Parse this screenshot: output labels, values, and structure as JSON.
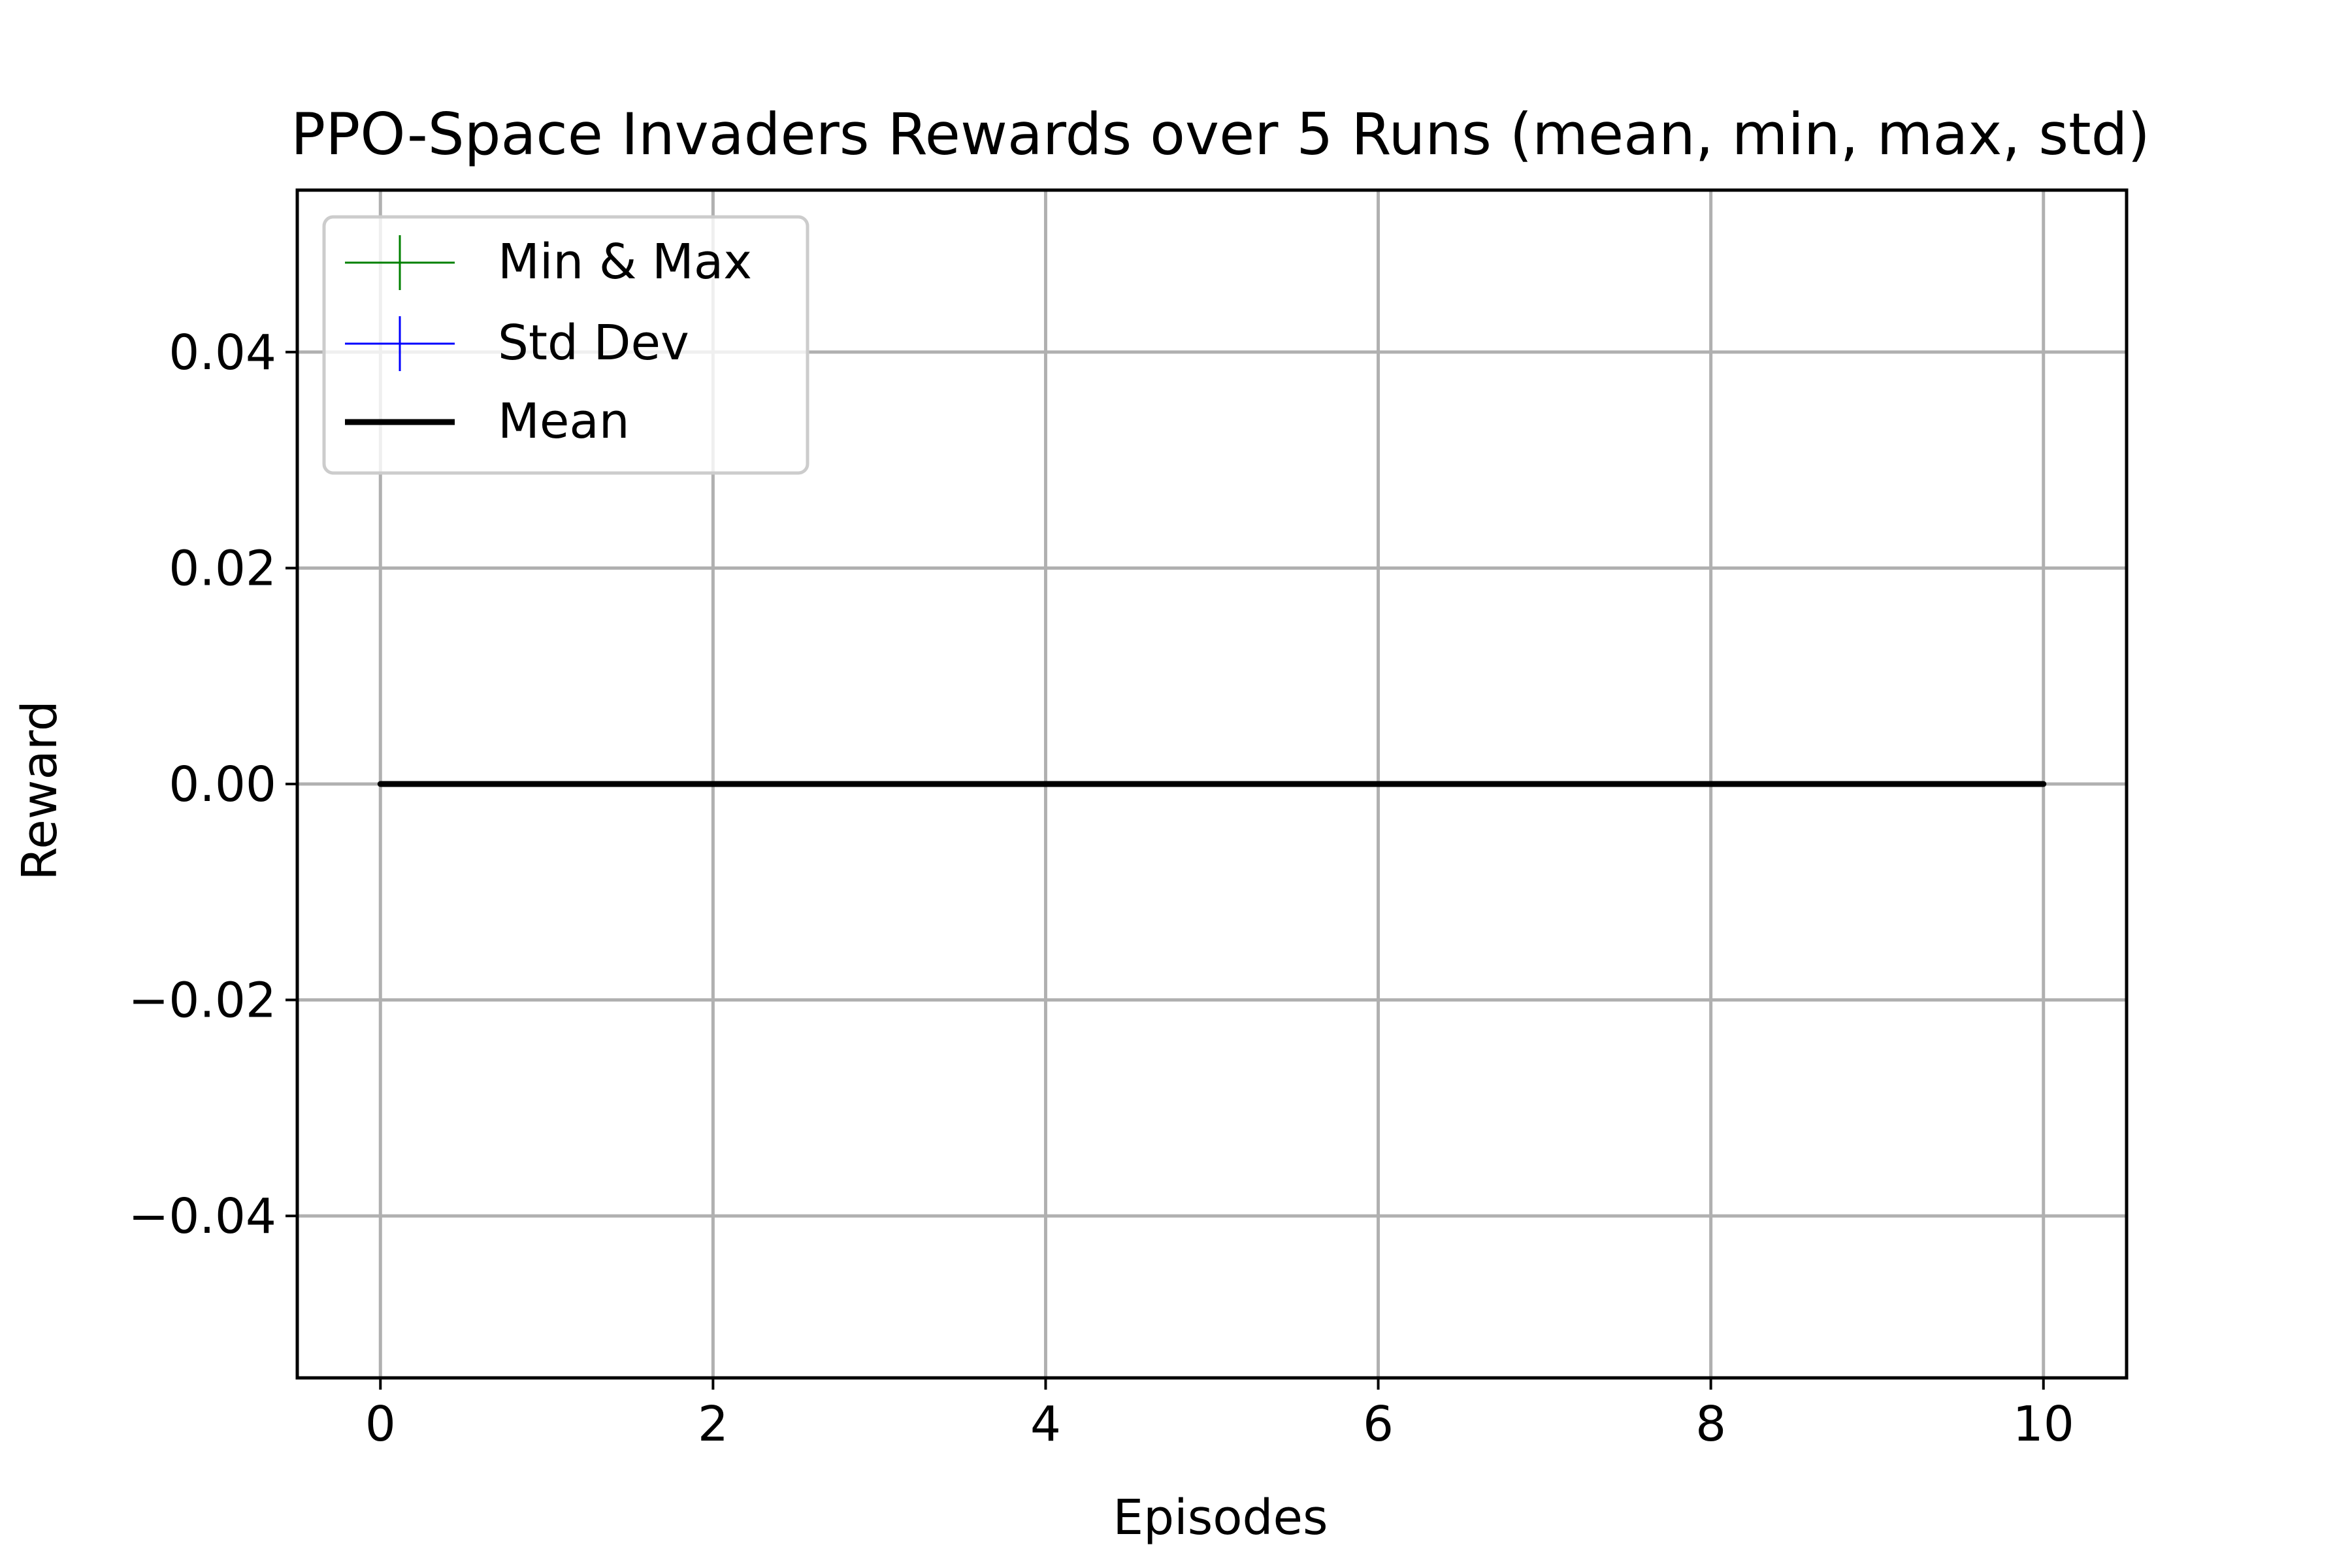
{
  "chart_data": {
    "type": "line",
    "title": "PPO-Space Invaders Rewards over 5 Runs (mean, min, max, std)",
    "xlabel": "Episodes",
    "ylabel": "Reward",
    "xlim": [
      -0.5,
      10.5
    ],
    "ylim": [
      -0.055,
      0.055
    ],
    "x_ticks": [
      0,
      2,
      4,
      6,
      8,
      10
    ],
    "x_tick_labels": [
      "0",
      "2",
      "4",
      "6",
      "8",
      "10"
    ],
    "y_ticks": [
      -0.04,
      -0.02,
      0.0,
      0.02,
      0.04
    ],
    "y_tick_labels": [
      "−0.04",
      "−0.02",
      "0.00",
      "0.02",
      "0.04"
    ],
    "grid": true,
    "legend_position": "upper-left",
    "x": [
      0,
      1,
      2,
      3,
      4,
      5,
      6,
      7,
      8,
      9,
      10
    ],
    "series": [
      {
        "name": "Min & Max",
        "color": "#008000",
        "style": "errorbar",
        "values": [
          0,
          0,
          0,
          0,
          0,
          0,
          0,
          0,
          0,
          0,
          0
        ],
        "min": [
          0,
          0,
          0,
          0,
          0,
          0,
          0,
          0,
          0,
          0,
          0
        ],
        "max": [
          0,
          0,
          0,
          0,
          0,
          0,
          0,
          0,
          0,
          0,
          0
        ]
      },
      {
        "name": "Std Dev",
        "color": "#0000ff",
        "style": "errorbar",
        "values": [
          0,
          0,
          0,
          0,
          0,
          0,
          0,
          0,
          0,
          0,
          0
        ],
        "std": [
          0,
          0,
          0,
          0,
          0,
          0,
          0,
          0,
          0,
          0,
          0
        ]
      },
      {
        "name": "Mean",
        "color": "#000000",
        "style": "line",
        "values": [
          0,
          0,
          0,
          0,
          0,
          0,
          0,
          0,
          0,
          0,
          0
        ]
      }
    ]
  }
}
